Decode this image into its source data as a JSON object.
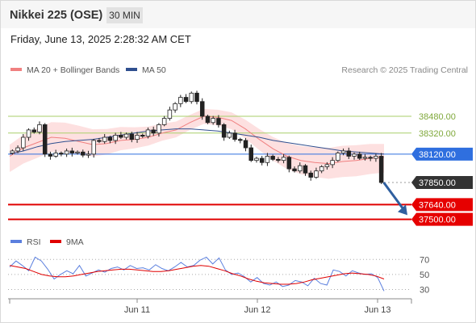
{
  "header": {
    "title": "Nikkei 225 (OSE)",
    "timeframe": "30 MIN",
    "datetime": "Friday, June 13, 2025 2:28:32 AM CET"
  },
  "legend": {
    "ma20_label": "MA 20 + Bollinger Bands",
    "ma50_label": "MA 50",
    "credit": "Research © 2025 Trading Central",
    "rsi_label": "RSI",
    "rsi_ma_label": "9MA"
  },
  "colors": {
    "ma20": "#f08080",
    "ma50": "#2f4f8f",
    "bands_fill": "#fde0e0",
    "candle": "#222222",
    "support": "#e00000",
    "pivot": "#2f6fdf",
    "resistance": "#a9cf6a",
    "rsi": "#5b7fde",
    "rsi_ma": "#e00000",
    "arrow": "#2f5f9f"
  },
  "chart_data": [
    {
      "type": "line",
      "title": "",
      "price_range": [
        37420,
        38810
      ],
      "x_ticks": [
        "Jun 11",
        "Jun 12",
        "Jun 13"
      ],
      "series": [
        {
          "name": "MA 20 + Bollinger Bands",
          "values": [
            38100,
            38180,
            38230,
            38280,
            38270,
            38240,
            38210,
            38220,
            38250,
            38260,
            38280,
            38320,
            38350,
            38420,
            38480,
            38470,
            38440,
            38360,
            38260,
            38170,
            38100,
            38060,
            38040,
            38030,
            38050,
            38060,
            38080,
            38090
          ]
        },
        {
          "name": "MA 50",
          "values": [
            38120,
            38150,
            38190,
            38220,
            38240,
            38250,
            38260,
            38280,
            38300,
            38320,
            38340,
            38350,
            38360,
            38360,
            38350,
            38340,
            38320,
            38300,
            38280,
            38250,
            38230,
            38210,
            38190,
            38170,
            38150,
            38140,
            38130,
            38120
          ]
        }
      ],
      "price_path": [
        38150,
        38180,
        38280,
        38350,
        38330,
        38400,
        38120,
        38100,
        38130,
        38120,
        38150,
        38130,
        38140,
        38110,
        38120,
        38250,
        38240,
        38280,
        38250,
        38300,
        38280,
        38310,
        38260,
        38300,
        38290,
        38350,
        38320,
        38400,
        38460,
        38540,
        38600,
        38660,
        38620,
        38700,
        38620,
        38480,
        38420,
        38460,
        38400,
        38280,
        38320,
        38260,
        38250,
        38180,
        38060,
        38080,
        38040,
        38100,
        38070,
        38060,
        38090,
        37980,
        37960,
        38010,
        37940,
        37900,
        37960,
        38000,
        38020,
        38060,
        38130,
        38150,
        38100,
        38120,
        38080,
        38090,
        38080,
        38100,
        37850
      ],
      "levels": [
        {
          "price": 38480.0,
          "label": "38480.00",
          "kind": "resistance"
        },
        {
          "price": 38320.0,
          "label": "38320.00",
          "kind": "resistance"
        },
        {
          "price": 38120.0,
          "label": "38120.00",
          "kind": "pivot"
        },
        {
          "price": 37850.0,
          "label": "37850.00",
          "kind": "last"
        },
        {
          "price": 37640.0,
          "label": "37640.00",
          "kind": "support"
        },
        {
          "price": 37500.0,
          "label": "37500.00",
          "kind": "support"
        }
      ]
    },
    {
      "type": "line",
      "title": "",
      "ylim": [
        22,
        80
      ],
      "y_ticks": [
        70,
        50,
        30
      ],
      "series": [
        {
          "name": "RSI",
          "values": [
            60,
            68,
            62,
            55,
            73,
            68,
            57,
            44,
            50,
            55,
            51,
            62,
            48,
            52,
            56,
            53,
            58,
            60,
            56,
            62,
            58,
            59,
            56,
            63,
            58,
            55,
            60,
            66,
            60,
            62,
            69,
            73,
            64,
            72,
            56,
            50,
            52,
            47,
            40,
            46,
            38,
            36,
            40,
            34,
            36,
            42,
            40,
            35,
            45,
            38,
            36,
            56,
            54,
            48,
            55,
            52,
            50,
            51,
            46,
            28
          ]
        },
        {
          "name": "9MA",
          "values": [
            62,
            60,
            58,
            54,
            50,
            48,
            47,
            47,
            48,
            50,
            52,
            54,
            55,
            56,
            57,
            57,
            56,
            55,
            54,
            54,
            55,
            57,
            59,
            61,
            62,
            61,
            58,
            55,
            51,
            48,
            44,
            41,
            39,
            38,
            37,
            37,
            38,
            40,
            43,
            45,
            47,
            49,
            51,
            52,
            51,
            50,
            48,
            44
          ]
        }
      ]
    }
  ]
}
